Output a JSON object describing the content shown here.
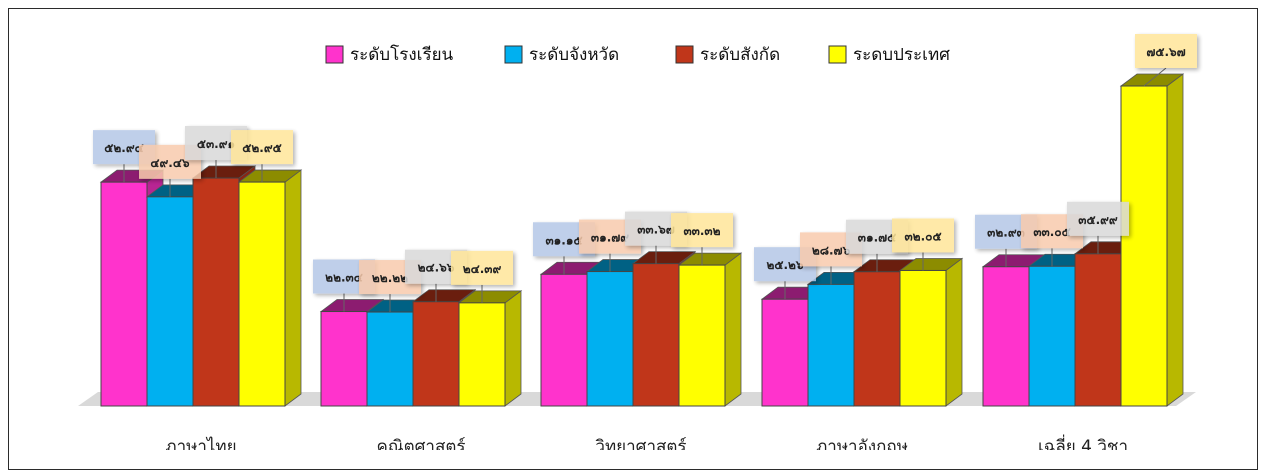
{
  "chart_data": {
    "type": "bar",
    "categories": [
      "ภาษาไทย",
      "คณิตศาสตร์",
      "วิทยาศาสตร์",
      "ภาษาอังกฤษ",
      "เฉลี่ย 4 วิชา"
    ],
    "series": [
      {
        "name": "ระดับโรงเรียน",
        "values": [
          52.94,
          22.34,
          31.15,
          25.26,
          32.93
        ],
        "labels": [
          "๕๒.๙๔",
          "๒๒.๓๔",
          "๓๑.๑๕",
          "๒๕.๒๖",
          "๓๒.๙๓"
        ]
      },
      {
        "name": "ระดับจังหวัด",
        "values": [
          49.46,
          22.22,
          31.79,
          28.76,
          33.05
        ],
        "labels": [
          "๔๙.๔๖",
          "๒๒.๒๒",
          "๓๑.๗๙",
          "๒๘.๗๖",
          "๓๓.๐๕"
        ]
      },
      {
        "name": "ระดับสังกัด",
        "values": [
          53.91,
          24.66,
          33.67,
          31.75,
          35.99
        ],
        "labels": [
          "๕๓.๙๑",
          "๒๔.๖๖",
          "๓๓.๖๗",
          "๓๑.๗๕",
          "๓๕.๙๙"
        ]
      },
      {
        "name": "ระดบประเทศ",
        "values": [
          52.95,
          24.39,
          33.32,
          32.05,
          75.67
        ],
        "labels": [
          "๕๒.๙๕",
          "๒๔.๓๙",
          "๓๓.๓๒",
          "๓๒.๐๕",
          "๗๕.๖๗"
        ]
      }
    ],
    "colors": [
      "#ff33cc",
      "#00b0f0",
      "#c0361a",
      "#ffff00"
    ],
    "ylim": [
      0,
      80
    ],
    "grid": false,
    "legend_position": "top-center",
    "style": "3d-clustered-column"
  }
}
